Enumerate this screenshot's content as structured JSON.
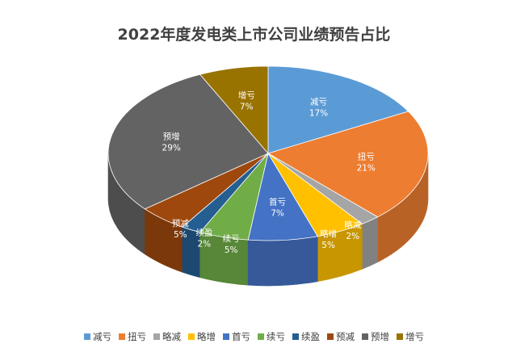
{
  "chart_data": {
    "type": "pie",
    "title": "2022年度发电类上市公司业绩预告占比",
    "legend_position": "bottom",
    "slices": [
      {
        "name": "减亏",
        "percent": 17,
        "label": "17%",
        "color": "#5b9bd5"
      },
      {
        "name": "扭亏",
        "percent": 21,
        "label": "21%",
        "color": "#ed7d31"
      },
      {
        "name": "略减",
        "percent": 2,
        "label": "2%",
        "color": "#a5a5a5"
      },
      {
        "name": "略增",
        "percent": 5,
        "label": "5%",
        "color": "#ffc000"
      },
      {
        "name": "首亏",
        "percent": 7,
        "label": "7%",
        "color": "#4472c4"
      },
      {
        "name": "续亏",
        "percent": 5,
        "label": "5%",
        "color": "#70ad47"
      },
      {
        "name": "续盈",
        "percent": 2,
        "label": "2%",
        "color": "#255e91"
      },
      {
        "name": "预减",
        "percent": 5,
        "label": "5%",
        "color": "#9e480e"
      },
      {
        "name": "预增",
        "percent": 29,
        "label": "29%",
        "color": "#636363"
      },
      {
        "name": "增亏",
        "percent": 7,
        "label": "7%",
        "color": "#997300"
      }
    ]
  }
}
